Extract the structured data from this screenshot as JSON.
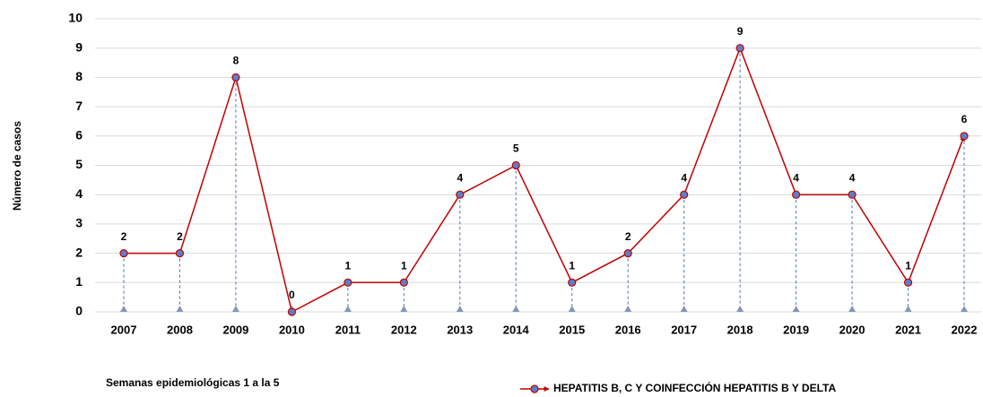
{
  "chart_data": {
    "type": "line",
    "y_label": "Número de casos",
    "annotation": "Semanas epidemiológicas 1 a la 5",
    "categories": [
      "2007",
      "2008",
      "2009",
      "2010",
      "2011",
      "2012",
      "2013",
      "2014",
      "2015",
      "2016",
      "2017",
      "2018",
      "2019",
      "2020",
      "2021",
      "2022"
    ],
    "series": [
      {
        "name": "HEPATITIS B, C Y COINFECCIÓN HEPATITIS B Y DELTA",
        "color": "#c00000",
        "marker_color": "#5b7fc7",
        "values": [
          2,
          2,
          8,
          0,
          1,
          1,
          4,
          5,
          1,
          2,
          4,
          9,
          4,
          4,
          1,
          6
        ]
      }
    ],
    "ylim": [
      0,
      10
    ],
    "yticks": [
      0,
      1,
      2,
      3,
      4,
      5,
      6,
      7,
      8,
      9,
      10
    ],
    "grid": true,
    "legend": "bottom",
    "drop_lines": true
  }
}
